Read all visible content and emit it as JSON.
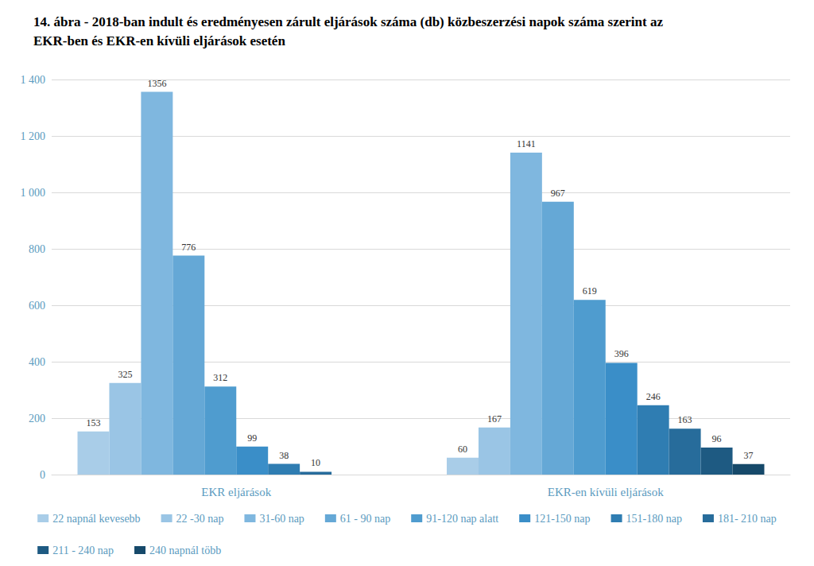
{
  "chart_data": {
    "type": "bar",
    "title": "14. ábra - 2018-ban indult és eredményesen zárult eljárások száma (db) közbeszerzési napok száma szerint az EKR-ben és EKR-en kívüli eljárások esetén",
    "categories": [
      "EKR eljárások",
      "EKR-en kívüli eljárások"
    ],
    "series": [
      {
        "name": "22 napnál kevesebb",
        "color": "#a9cde8",
        "values": [
          153,
          60
        ]
      },
      {
        "name": "22 -30 nap",
        "color": "#9ac5e5",
        "values": [
          325,
          167
        ]
      },
      {
        "name": "31-60 nap",
        "color": "#7fb7df",
        "values": [
          1356,
          1141
        ]
      },
      {
        "name": "61 - 90 nap",
        "color": "#65a8d6",
        "values": [
          776,
          967
        ]
      },
      {
        "name": "91-120 nap alatt",
        "color": "#4f9ccf",
        "values": [
          312,
          619
        ]
      },
      {
        "name": "121-150 nap",
        "color": "#3a8ec8",
        "values": [
          99,
          396
        ]
      },
      {
        "name": "151-180 nap",
        "color": "#2f7db2",
        "values": [
          38,
          246
        ]
      },
      {
        "name": "181- 210 nap",
        "color": "#276c9b",
        "values": [
          10,
          163
        ]
      },
      {
        "name": "211 - 240 nap",
        "color": "#1e5a82",
        "values": [
          null,
          96
        ]
      },
      {
        "name": "240 napnál több",
        "color": "#16496a",
        "values": [
          null,
          37
        ]
      }
    ],
    "ylim": [
      0,
      1400
    ],
    "yticks": [
      0,
      200,
      400,
      600,
      800,
      {
        "value": 1000,
        "label": "1 000"
      },
      {
        "value": 1200,
        "label": "1 200"
      },
      {
        "value": 1400,
        "label": "1 400"
      }
    ],
    "grid": true,
    "legend": "bottom",
    "data_labels": true
  }
}
